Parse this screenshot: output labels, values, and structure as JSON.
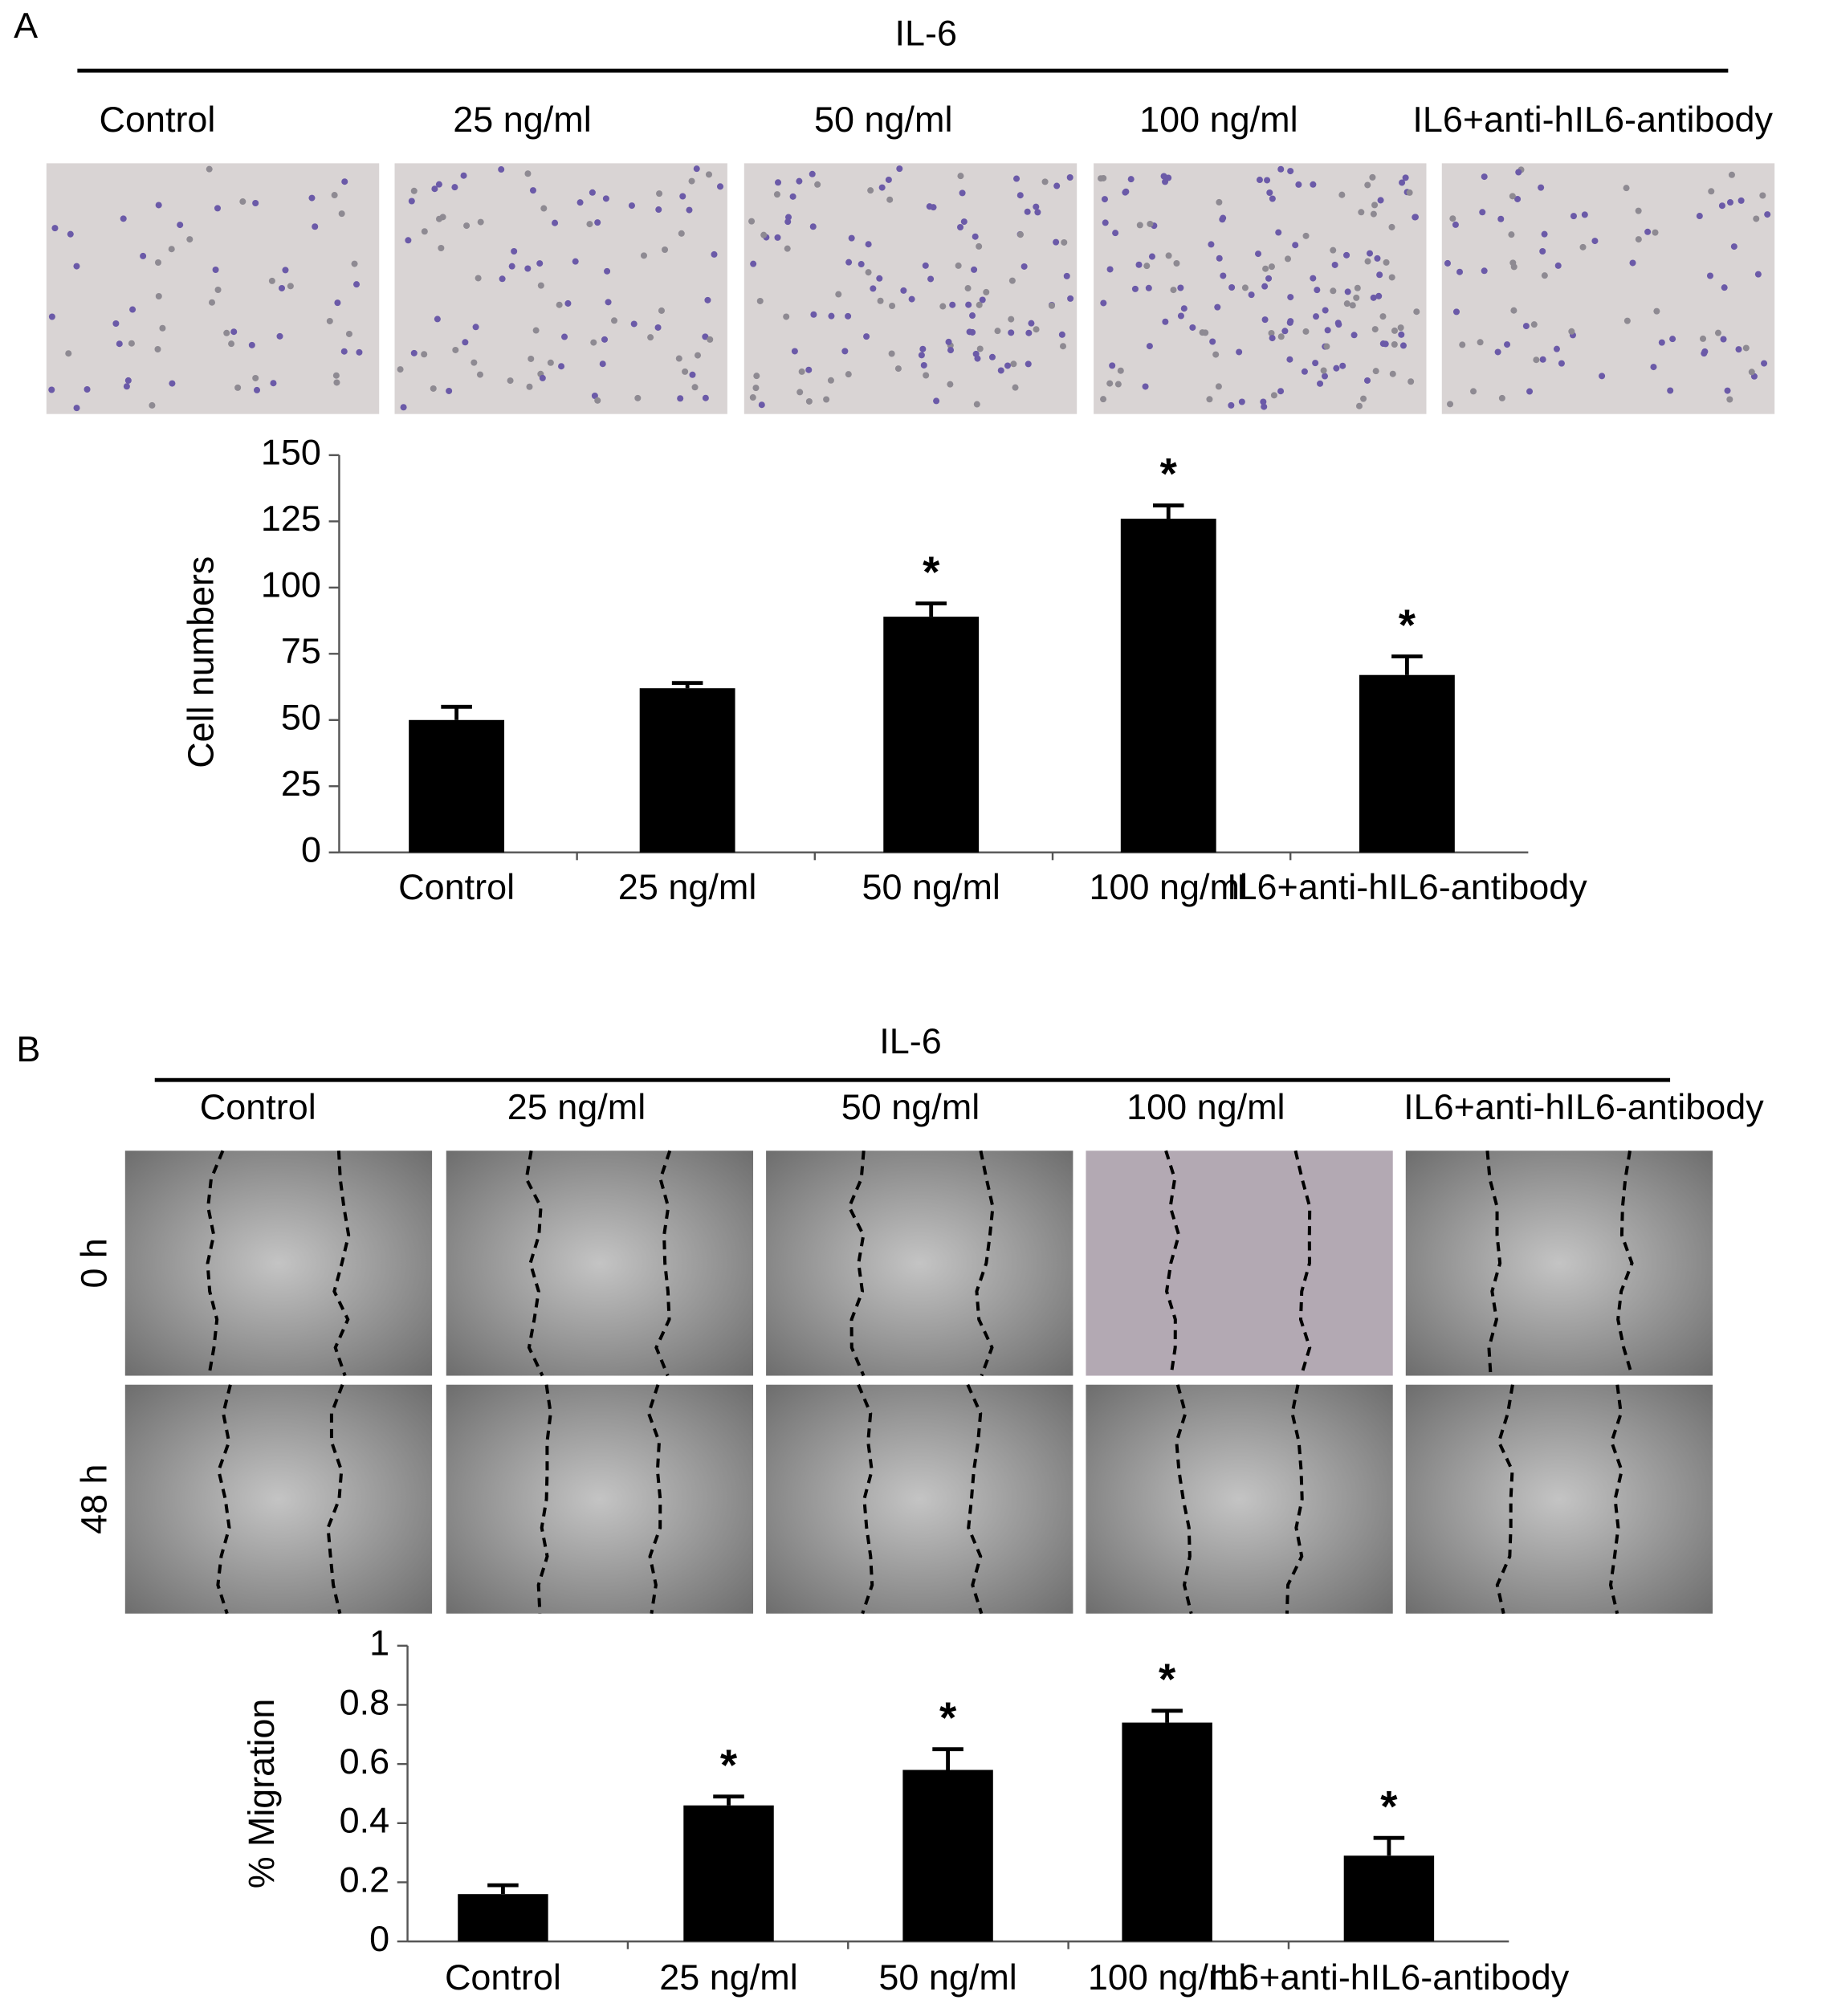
{
  "panels": [
    {
      "label": "A",
      "header": "IL-6",
      "columns": [
        "Control",
        "25 ng/ml",
        "50 ng/ml",
        "100 ng/ml",
        "IL6+anti-hIL6-antibody"
      ]
    },
    {
      "label": "B",
      "header": "IL-6",
      "columns": [
        "Control",
        "25 ng/ml",
        "50 ng/ml",
        "100 ng/ml",
        "IL6+anti-hIL6-antibody"
      ],
      "rows": [
        "0 h",
        "48 h"
      ]
    }
  ],
  "chart_data": [
    {
      "type": "bar",
      "ylabel": "Cell numbers",
      "categories": [
        "Control",
        "25 ng/ml",
        "50 ng/ml",
        "100 ng/ml",
        "IL6+anti-hIL6-antibody"
      ],
      "values": [
        50,
        62,
        89,
        126,
        67
      ],
      "errors": [
        5,
        2,
        5,
        5,
        7
      ],
      "significance": [
        null,
        null,
        "*",
        "*",
        "*"
      ],
      "color": "#000000",
      "ylim": [
        0,
        150
      ],
      "yticks": [
        0,
        25,
        50,
        75,
        100,
        125,
        150
      ]
    },
    {
      "type": "bar",
      "ylabel": "% Migration",
      "categories": [
        "Control",
        "25 ng/ml",
        "50 ng/ml",
        "100 ng/ml",
        "IL6+anti-hIL6-antibody"
      ],
      "values": [
        0.16,
        0.46,
        0.58,
        0.74,
        0.29
      ],
      "errors": [
        0.03,
        0.03,
        0.07,
        0.04,
        0.06
      ],
      "significance": [
        null,
        "*",
        "*",
        "*",
        "*"
      ],
      "color": "#000000",
      "ylim": [
        0,
        1
      ],
      "yticks": [
        0,
        0.2,
        0.4,
        0.6,
        0.8,
        1
      ]
    }
  ]
}
